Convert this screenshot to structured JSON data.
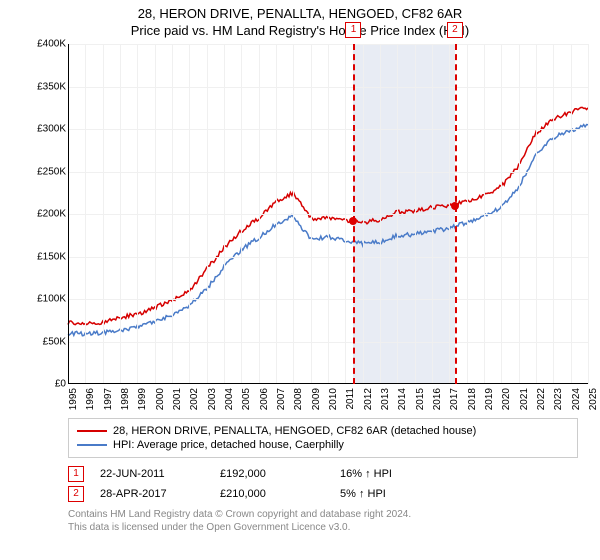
{
  "title_line1": "28, HERON DRIVE, PENALLTA, HENGOED, CF82 6AR",
  "title_line2": "Price paid vs. HM Land Registry's House Price Index (HPI)",
  "chart": {
    "type": "line",
    "xlim": [
      1995,
      2025
    ],
    "ylim": [
      0,
      400000
    ],
    "ytick_step": 50000,
    "y_tick_labels": [
      "£0",
      "£50K",
      "£100K",
      "£150K",
      "£200K",
      "£250K",
      "£300K",
      "£350K",
      "£400K"
    ],
    "x_years": [
      1995,
      1996,
      1997,
      1998,
      1999,
      2000,
      2001,
      2002,
      2003,
      2004,
      2005,
      2006,
      2007,
      2008,
      2009,
      2010,
      2011,
      2012,
      2013,
      2014,
      2015,
      2016,
      2017,
      2018,
      2019,
      2020,
      2021,
      2022,
      2023,
      2024,
      2025
    ],
    "background_color": "#ffffff",
    "grid_color": "#f0f0f0",
    "axis_color": "#000000",
    "shaded_band": {
      "x_start": 2011.47,
      "x_end": 2017.32,
      "color": "#e8ecf4"
    },
    "series": [
      {
        "name": "property",
        "color": "#d60000",
        "line_width": 1.5,
        "values_by_year": {
          "1995": 72000,
          "1996": 71000,
          "1997": 72000,
          "1998": 78000,
          "1999": 82000,
          "2000": 90000,
          "2001": 98000,
          "2002": 110000,
          "2003": 135000,
          "2004": 160000,
          "2005": 180000,
          "2006": 195000,
          "2007": 215000,
          "2008": 225000,
          "2009": 195000,
          "2010": 195000,
          "2011": 192000,
          "2012": 190000,
          "2013": 193000,
          "2014": 202000,
          "2015": 203000,
          "2016": 208000,
          "2017": 210000,
          "2018": 215000,
          "2019": 222000,
          "2020": 232000,
          "2021": 257000,
          "2022": 295000,
          "2023": 312000,
          "2024": 320000,
          "2025": 325000
        }
      },
      {
        "name": "hpi",
        "color": "#4a7bc8",
        "line_width": 1.5,
        "values_by_year": {
          "1995": 60000,
          "1996": 59000,
          "1997": 60000,
          "1998": 63000,
          "1999": 67000,
          "2000": 74000,
          "2001": 80000,
          "2002": 92000,
          "2003": 112000,
          "2004": 138000,
          "2005": 158000,
          "2006": 172000,
          "2007": 188000,
          "2008": 198000,
          "2009": 170000,
          "2010": 173000,
          "2011": 168000,
          "2012": 165000,
          "2013": 167000,
          "2014": 175000,
          "2015": 176000,
          "2016": 180000,
          "2017": 183000,
          "2018": 190000,
          "2019": 198000,
          "2020": 208000,
          "2021": 232000,
          "2022": 270000,
          "2023": 290000,
          "2024": 298000,
          "2025": 305000
        }
      }
    ],
    "events": [
      {
        "n": "1",
        "year": 2011.47,
        "price": 192000
      },
      {
        "n": "2",
        "year": 2017.32,
        "price": 210000
      }
    ]
  },
  "legend": {
    "property_label": "28, HERON DRIVE, PENALLTA, HENGOED, CF82 6AR (detached house)",
    "hpi_label": "HPI: Average price, detached house, Caerphilly"
  },
  "events_table": [
    {
      "n": "1",
      "date": "22-JUN-2011",
      "price": "£192,000",
      "hpi_delta": "16% ↑ HPI"
    },
    {
      "n": "2",
      "date": "28-APR-2017",
      "price": "£210,000",
      "hpi_delta": "5% ↑ HPI"
    }
  ],
  "footer_line1": "Contains HM Land Registry data © Crown copyright and database right 2024.",
  "footer_line2": "This data is licensed under the Open Government Licence v3.0."
}
